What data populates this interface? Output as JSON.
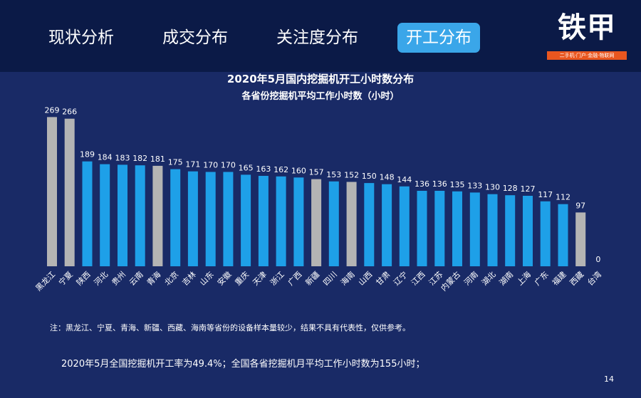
{
  "nav": {
    "tabs": [
      {
        "label": "现状分析"
      },
      {
        "label": "成交分布"
      },
      {
        "label": "关注度分布"
      },
      {
        "label": "开工分布"
      }
    ]
  },
  "logo": {
    "name": "铁甲",
    "tagline": "二手机·门户·金融·物联网"
  },
  "chart_data": {
    "type": "bar",
    "title": "2020年5月国内挖掘机开工小时数分布",
    "subtitle": "各省份挖掘机平均工作小时数（小时）",
    "categories": [
      "黑龙江",
      "宁夏",
      "陕西",
      "河北",
      "贵州",
      "云南",
      "青海",
      "北京",
      "吉林",
      "山东",
      "安徽",
      "重庆",
      "天津",
      "浙江",
      "广西",
      "新疆",
      "四川",
      "海南",
      "山西",
      "甘肃",
      "辽宁",
      "江西",
      "江苏",
      "内蒙古",
      "河南",
      "湖北",
      "湖南",
      "上海",
      "广东",
      "福建",
      "西藏",
      "台湾"
    ],
    "values": [
      269,
      266,
      189,
      184,
      183,
      182,
      181,
      175,
      171,
      170,
      170,
      165,
      163,
      162,
      160,
      157,
      153,
      152,
      150,
      148,
      144,
      136,
      136,
      135,
      133,
      130,
      128,
      127,
      117,
      112,
      97,
      0
    ],
    "highlighted": [
      "黑龙江",
      "宁夏",
      "青海",
      "新疆",
      "海南",
      "西藏"
    ],
    "colors": {
      "normal": "#1ea0e8",
      "highlighted": "#b4b4b4"
    },
    "ylim": [
      0,
      290
    ],
    "grid": false
  },
  "note": "注：黑龙江、宁夏、青海、新疆、西藏、海南等省份的设备样本量较少，结果不具有代表性，仅供参考。",
  "summary": "2020年5月全国挖掘机开工率为49.4%；全国各省挖掘机月平均工作小时数为155小时；",
  "page_number": "14"
}
